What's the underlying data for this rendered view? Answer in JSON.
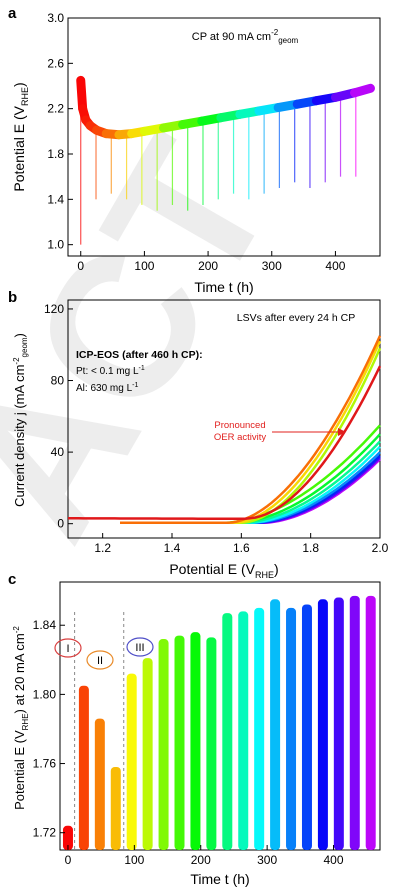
{
  "watermark": {
    "text": "ACT"
  },
  "chart_data": [
    {
      "panel": "a",
      "type": "line",
      "annotation": "CP at 90 mA cm",
      "annotation_sup": "-2",
      "annotation_sub": "geom",
      "ylabel": "Potential E (V",
      "ylabel_sub": "RHE",
      "ylabel_end": ")",
      "xlabel": "Time t (h)",
      "xlim": [
        -20,
        470
      ],
      "ylim": [
        0.9,
        3.0
      ],
      "xticks": [
        "0",
        "100",
        "200",
        "300",
        "400"
      ],
      "yticks": [
        "1.0",
        "1.4",
        "1.8",
        "2.2",
        "2.6",
        "3.0"
      ],
      "series": [
        {
          "x": [
            0,
            3,
            8,
            15,
            25,
            40,
            60,
            80,
            100,
            130,
            160,
            190,
            220,
            250,
            280,
            310,
            340,
            370,
            400,
            430,
            455
          ],
          "y": [
            2.45,
            2.2,
            2.1,
            2.05,
            2.01,
            1.98,
            1.97,
            1.98,
            2.0,
            2.03,
            2.06,
            2.09,
            2.12,
            2.15,
            2.18,
            2.21,
            2.24,
            2.27,
            2.3,
            2.34,
            2.38
          ]
        }
      ],
      "lsv_interruption_times": [
        0,
        24,
        48,
        72,
        96,
        120,
        144,
        168,
        192,
        216,
        240,
        264,
        288,
        312,
        336,
        360,
        384,
        408,
        432
      ],
      "interruption_min_potential": [
        1.0,
        1.4,
        1.45,
        1.4,
        1.35,
        1.3,
        1.35,
        1.3,
        1.35,
        1.4,
        1.45,
        1.4,
        1.45,
        1.5,
        1.55,
        1.5,
        1.55,
        1.6,
        1.6
      ]
    },
    {
      "panel": "b",
      "type": "line",
      "title": "LSVs after every 24 h CP",
      "ylabel": "Current density j (mA cm",
      "ylabel_sup": "-2",
      "ylabel_sub": "geom",
      "ylabel_end": ")",
      "xlabel": "Potential E (V",
      "xlabel_sub": "RHE",
      "xlabel_end": ")",
      "xlim": [
        1.1,
        2.0
      ],
      "ylim": [
        -8,
        125
      ],
      "xticks": [
        "1.2",
        "1.4",
        "1.6",
        "1.8",
        "2.0"
      ],
      "yticks": [
        "0",
        "40",
        "80",
        "120"
      ],
      "info_title": "ICP-EOS (after 460 h CP):",
      "info_line1": "Pt: < 0.1 mg L",
      "info_line1_sup": "-1",
      "info_line2": "Al: 630 mg L",
      "info_line2_sup": "-1",
      "annotation_line1": "Pronounced",
      "annotation_line2": "OER activity",
      "series_onset_V": [
        1.62,
        1.56,
        1.58,
        1.6,
        1.55,
        1.58,
        1.6,
        1.62,
        1.63,
        1.64,
        1.65,
        1.66
      ],
      "series_j_at_2V": [
        88,
        105,
        102,
        98,
        55,
        50,
        46,
        43,
        40,
        38,
        37,
        36
      ]
    },
    {
      "panel": "c",
      "type": "bar",
      "ylabel": "Potential E (V",
      "ylabel_sub": "RHE",
      "ylabel_end": ") at 20 mA cm",
      "ylabel_sup": "-2",
      "xlabel": "Time t (h)",
      "xlim": [
        -12,
        470
      ],
      "ylim": [
        1.71,
        1.865
      ],
      "xticks": [
        "0",
        "100",
        "200",
        "300",
        "400"
      ],
      "yticks": [
        "1.72",
        "1.76",
        "1.80",
        "1.84"
      ],
      "regions": [
        "I",
        "II",
        "III"
      ],
      "region_dividers_h": [
        10,
        84
      ],
      "x": [
        0,
        24,
        48,
        72,
        96,
        120,
        144,
        168,
        192,
        216,
        240,
        264,
        288,
        312,
        336,
        360,
        384,
        408,
        432,
        456
      ],
      "values": [
        1.724,
        1.805,
        1.786,
        1.758,
        1.812,
        1.821,
        1.832,
        1.834,
        1.836,
        1.833,
        1.847,
        1.848,
        1.85,
        1.855,
        1.85,
        1.852,
        1.855,
        1.856,
        1.857,
        1.857
      ]
    }
  ]
}
